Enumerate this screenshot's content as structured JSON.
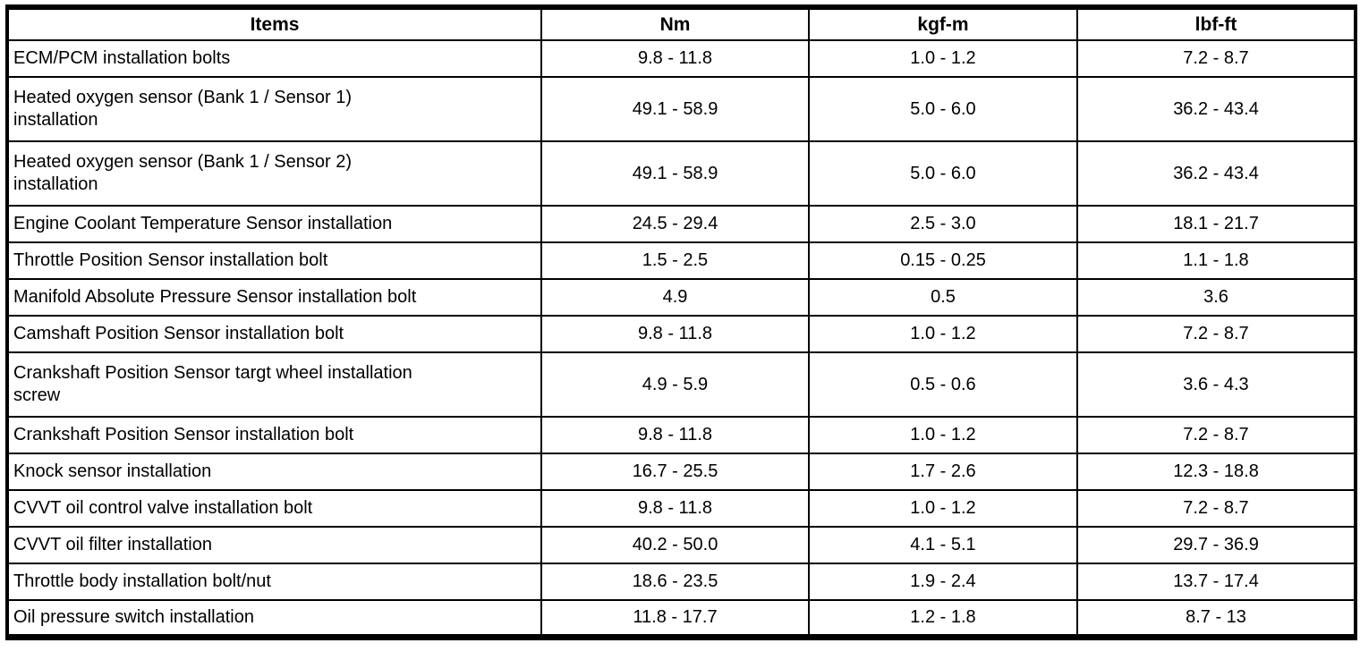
{
  "table": {
    "headers": [
      "Items",
      "Nm",
      "kgf-m",
      "lbf-ft"
    ],
    "rows": [
      {
        "item": "ECM/PCM installation bolts",
        "nm": "9.8 - 11.8",
        "kgf_m": "1.0 - 1.2",
        "lbf_ft": "7.2 - 8.7"
      },
      {
        "item": "Heated oxygen sensor (Bank 1 / Sensor 1)\ninstallation",
        "nm": "49.1 - 58.9",
        "kgf_m": "5.0 - 6.0",
        "lbf_ft": "36.2 - 43.4"
      },
      {
        "item": "Heated oxygen sensor (Bank 1 / Sensor 2)\ninstallation",
        "nm": "49.1 - 58.9",
        "kgf_m": "5.0 - 6.0",
        "lbf_ft": "36.2 - 43.4"
      },
      {
        "item": "Engine Coolant Temperature Sensor installation",
        "nm": "24.5 - 29.4",
        "kgf_m": "2.5 - 3.0",
        "lbf_ft": "18.1 - 21.7"
      },
      {
        "item": "Throttle Position Sensor installation bolt",
        "nm": "1.5 - 2.5",
        "kgf_m": "0.15 - 0.25",
        "lbf_ft": "1.1 - 1.8"
      },
      {
        "item": "Manifold Absolute Pressure Sensor installation bolt",
        "nm": "4.9",
        "kgf_m": "0.5",
        "lbf_ft": "3.6"
      },
      {
        "item": "Camshaft Position Sensor installation bolt",
        "nm": "9.8 - 11.8",
        "kgf_m": "1.0 - 1.2",
        "lbf_ft": "7.2 - 8.7"
      },
      {
        "item": "Crankshaft Position Sensor targt wheel installation\nscrew",
        "nm": "4.9 - 5.9",
        "kgf_m": "0.5 - 0.6",
        "lbf_ft": "3.6 - 4.3"
      },
      {
        "item": "Crankshaft Position Sensor installation bolt",
        "nm": "9.8 - 11.8",
        "kgf_m": "1.0 - 1.2",
        "lbf_ft": "7.2 - 8.7"
      },
      {
        "item": "Knock sensor installation",
        "nm": "16.7 - 25.5",
        "kgf_m": "1.7 - 2.6",
        "lbf_ft": "12.3 - 18.8"
      },
      {
        "item": "CVVT oil control valve installation bolt",
        "nm": "9.8 - 11.8",
        "kgf_m": "1.0 - 1.2",
        "lbf_ft": "7.2 - 8.7"
      },
      {
        "item": "CVVT oil filter installation",
        "nm": "40.2 - 50.0",
        "kgf_m": "4.1 - 5.1",
        "lbf_ft": "29.7 - 36.9"
      },
      {
        "item": "Throttle body installation bolt/nut",
        "nm": "18.6 - 23.5",
        "kgf_m": "1.9 - 2.4",
        "lbf_ft": "13.7 - 17.4"
      },
      {
        "item": "Oil pressure switch installation",
        "nm": "11.8 - 17.7",
        "kgf_m": "1.2 - 1.8",
        "lbf_ft": "8.7 - 13"
      }
    ]
  }
}
